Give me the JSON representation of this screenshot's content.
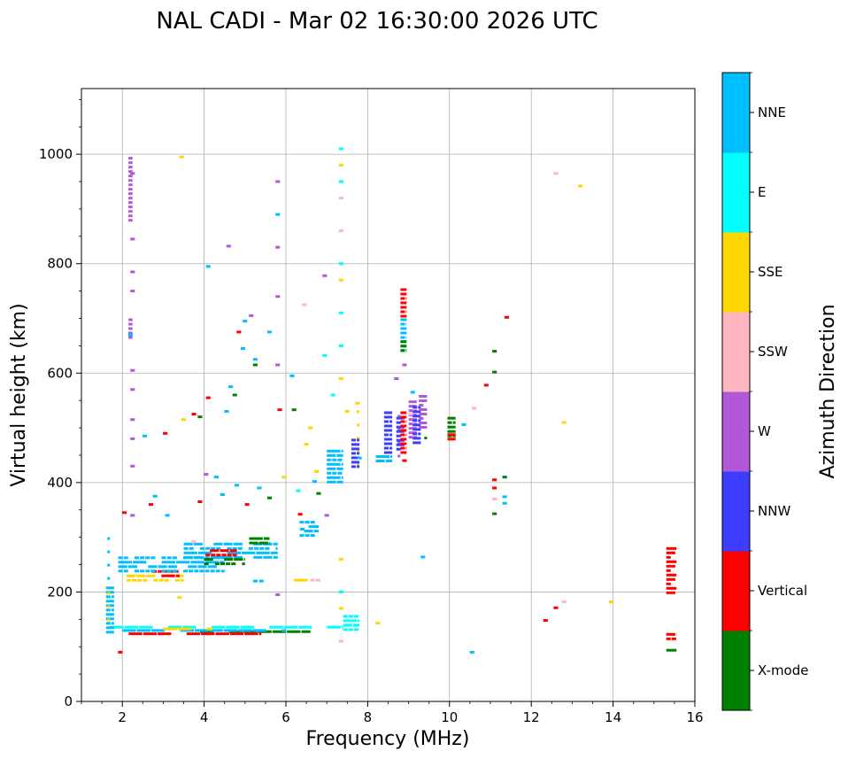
{
  "chart_data": {
    "type": "scatter",
    "title": "NAL CADI - Mar 02 16:30:00 2026 UTC",
    "xlabel": "Frequency (MHz)",
    "ylabel": "Virtual height (km)",
    "xlim": [
      1,
      16
    ],
    "ylim": [
      0,
      1120
    ],
    "xticks": [
      2,
      4,
      6,
      8,
      10,
      12,
      14,
      16
    ],
    "yticks": [
      0,
      200,
      400,
      600,
      800,
      1000
    ],
    "grid": true,
    "colorbar": {
      "title": "Azimuth Direction",
      "categories": [
        {
          "label": "X-mode",
          "color": "#008000"
        },
        {
          "label": "Vertical",
          "color": "#ff0000"
        },
        {
          "label": "NNW",
          "color": "#3d3dff"
        },
        {
          "label": "W",
          "color": "#b158d9"
        },
        {
          "label": "SSW",
          "color": "#ffb6c1"
        },
        {
          "label": "SSE",
          "color": "#ffd700"
        },
        {
          "label": "E",
          "color": "#00ffff"
        },
        {
          "label": "NNE",
          "color": "#00bfff"
        }
      ]
    },
    "segments": [
      {
        "label": "E",
        "f0": 1.7,
        "f1": 7.4,
        "h0": 130,
        "h1": 138
      },
      {
        "label": "X-mode",
        "f0": 3.9,
        "f1": 6.6,
        "h0": 124,
        "h1": 130
      },
      {
        "label": "Vertical",
        "f0": 1.8,
        "f1": 5.4,
        "h0": 121,
        "h1": 126
      },
      {
        "label": "NNE",
        "f0": 2.0,
        "f1": 6.0,
        "h0": 126,
        "h1": 132
      },
      {
        "label": "SSE",
        "f0": 3.0,
        "f1": 4.2,
        "h0": 131,
        "h1": 135
      },
      {
        "label": "E",
        "f0": 7.4,
        "f1": 7.8,
        "h0": 128,
        "h1": 158
      },
      {
        "label": "NNE",
        "f0": 1.6,
        "f1": 1.8,
        "h0": 125,
        "h1": 210
      },
      {
        "label": "SSE",
        "f0": 1.5,
        "f1": 1.7,
        "h0": 140,
        "h1": 200
      },
      {
        "label": "NNE",
        "f0": 1.5,
        "f1": 1.7,
        "h0": 220,
        "h1": 300
      },
      {
        "label": "SSE",
        "f0": 2.1,
        "f1": 3.5,
        "h0": 222,
        "h1": 232
      },
      {
        "label": "Vertical",
        "f0": 2.6,
        "f1": 3.4,
        "h0": 230,
        "h1": 240
      },
      {
        "label": "NNE",
        "f0": 1.9,
        "f1": 4.5,
        "h0": 240,
        "h1": 265
      },
      {
        "label": "NNE",
        "f0": 3.5,
        "f1": 5.8,
        "h0": 260,
        "h1": 290
      },
      {
        "label": "X-mode",
        "f0": 4.0,
        "f1": 5.0,
        "h0": 248,
        "h1": 262
      },
      {
        "label": "Vertical",
        "f0": 3.9,
        "f1": 4.8,
        "h0": 262,
        "h1": 278
      },
      {
        "label": "NNE",
        "f0": 6.2,
        "f1": 6.8,
        "h0": 300,
        "h1": 330
      },
      {
        "label": "X-mode",
        "f0": 5.1,
        "f1": 5.6,
        "h0": 290,
        "h1": 300
      },
      {
        "label": "SSE",
        "f0": 6.2,
        "f1": 6.8,
        "h0": 216,
        "h1": 224
      },
      {
        "label": "SSW",
        "f0": 6.6,
        "f1": 7.0,
        "h0": 216,
        "h1": 224
      },
      {
        "label": "NNE",
        "f0": 7.0,
        "f1": 7.4,
        "h0": 400,
        "h1": 460
      },
      {
        "label": "SSE",
        "f0": 7.6,
        "f1": 7.8,
        "h0": 420,
        "h1": 540
      },
      {
        "label": "NNW",
        "f0": 7.6,
        "f1": 7.8,
        "h0": 430,
        "h1": 480
      },
      {
        "label": "NNE",
        "f0": 8.2,
        "f1": 8.6,
        "h0": 440,
        "h1": 450
      },
      {
        "label": "NNW",
        "f0": 8.4,
        "f1": 8.6,
        "h0": 450,
        "h1": 530
      },
      {
        "label": "W",
        "f0": 8.6,
        "f1": 8.8,
        "h0": 450,
        "h1": 540
      },
      {
        "label": "NNW",
        "f0": 8.7,
        "f1": 8.9,
        "h0": 460,
        "h1": 520
      },
      {
        "label": "Vertical",
        "f0": 8.8,
        "f1": 8.95,
        "h0": 450,
        "h1": 530
      },
      {
        "label": "W",
        "f0": 9.0,
        "f1": 9.2,
        "h0": 480,
        "h1": 550
      },
      {
        "label": "NNW",
        "f0": 9.1,
        "f1": 9.3,
        "h0": 470,
        "h1": 540
      },
      {
        "label": "X-mode",
        "f0": 9.25,
        "f1": 9.45,
        "h0": 460,
        "h1": 500
      },
      {
        "label": "W",
        "f0": 9.25,
        "f1": 9.45,
        "h0": 500,
        "h1": 560
      },
      {
        "label": "X-mode",
        "f0": 9.95,
        "f1": 10.15,
        "h0": 485,
        "h1": 520
      },
      {
        "label": "Vertical",
        "f0": 9.95,
        "f1": 10.15,
        "h0": 475,
        "h1": 490
      },
      {
        "label": "Vertical",
        "f0": 8.8,
        "f1": 8.95,
        "h0": 700,
        "h1": 755
      },
      {
        "label": "NNE",
        "f0": 8.8,
        "f1": 8.95,
        "h0": 640,
        "h1": 700
      },
      {
        "label": "X-mode",
        "f0": 8.8,
        "f1": 8.95,
        "h0": 640,
        "h1": 660
      },
      {
        "label": "W",
        "f0": 2.15,
        "f1": 2.25,
        "h0": 880,
        "h1": 995
      },
      {
        "label": "W",
        "f0": 2.15,
        "f1": 2.25,
        "h0": 660,
        "h1": 700
      },
      {
        "label": "Vertical",
        "f0": 15.3,
        "f1": 15.55,
        "h0": 200,
        "h1": 282
      },
      {
        "label": "Vertical",
        "f0": 15.3,
        "f1": 15.55,
        "h0": 110,
        "h1": 125
      },
      {
        "label": "X-mode",
        "f0": 15.3,
        "f1": 15.55,
        "h0": 92,
        "h1": 96
      }
    ],
    "points": [
      {
        "label": "NNE",
        "f": 4.1,
        "h": 795
      },
      {
        "label": "NNE",
        "f": 5.8,
        "h": 890
      },
      {
        "label": "W",
        "f": 5.8,
        "h": 950
      },
      {
        "label": "E",
        "f": 7.35,
        "h": 1010
      },
      {
        "label": "SSE",
        "f": 7.35,
        "h": 980
      },
      {
        "label": "E",
        "f": 7.35,
        "h": 950
      },
      {
        "label": "SSW",
        "f": 7.35,
        "h": 920
      },
      {
        "label": "SSW",
        "f": 7.35,
        "h": 860
      },
      {
        "label": "E",
        "f": 7.35,
        "h": 800
      },
      {
        "label": "SSE",
        "f": 7.35,
        "h": 770
      },
      {
        "label": "E",
        "f": 7.35,
        "h": 710
      },
      {
        "label": "E",
        "f": 7.35,
        "h": 650
      },
      {
        "label": "SSE",
        "f": 7.35,
        "h": 590
      },
      {
        "label": "SSE",
        "f": 7.35,
        "h": 260
      },
      {
        "label": "E",
        "f": 7.35,
        "h": 200
      },
      {
        "label": "SSE",
        "f": 7.35,
        "h": 170
      },
      {
        "label": "SSW",
        "f": 7.35,
        "h": 110
      },
      {
        "label": "SSE",
        "f": 3.45,
        "h": 995
      },
      {
        "label": "W",
        "f": 5.8,
        "h": 830
      },
      {
        "label": "W",
        "f": 5.8,
        "h": 740
      },
      {
        "label": "W",
        "f": 5.8,
        "h": 615
      },
      {
        "label": "W",
        "f": 5.8,
        "h": 195
      },
      {
        "label": "SSW",
        "f": 12.6,
        "h": 965
      },
      {
        "label": "SSE",
        "f": 13.2,
        "h": 942
      },
      {
        "label": "Vertical",
        "f": 11.4,
        "h": 702
      },
      {
        "label": "X-mode",
        "f": 11.1,
        "h": 640
      },
      {
        "label": "X-mode",
        "f": 11.1,
        "h": 602
      },
      {
        "label": "Vertical",
        "f": 10.9,
        "h": 578
      },
      {
        "label": "SSW",
        "f": 10.6,
        "h": 536
      },
      {
        "label": "NNE",
        "f": 10.35,
        "h": 506
      },
      {
        "label": "Vertical",
        "f": 11.1,
        "h": 405
      },
      {
        "label": "Vertical",
        "f": 11.1,
        "h": 390
      },
      {
        "label": "NNE",
        "f": 11.35,
        "h": 374
      },
      {
        "label": "NNE",
        "f": 11.35,
        "h": 362
      },
      {
        "label": "X-mode",
        "f": 11.35,
        "h": 410
      },
      {
        "label": "SSW",
        "f": 11.1,
        "h": 370
      },
      {
        "label": "X-mode",
        "f": 11.1,
        "h": 343
      },
      {
        "label": "SSE",
        "f": 12.8,
        "h": 510
      },
      {
        "label": "NNE",
        "f": 9.35,
        "h": 264
      },
      {
        "label": "SSW",
        "f": 12.8,
        "h": 182
      },
      {
        "label": "SSE",
        "f": 13.95,
        "h": 182
      },
      {
        "label": "Vertical",
        "f": 12.6,
        "h": 171
      },
      {
        "label": "Vertical",
        "f": 12.35,
        "h": 148
      },
      {
        "label": "NNE",
        "f": 10.55,
        "h": 90
      },
      {
        "label": "SSE",
        "f": 8.25,
        "h": 143
      },
      {
        "label": "Vertical",
        "f": 1.95,
        "h": 90
      },
      {
        "label": "NNE",
        "f": 4.65,
        "h": 575
      },
      {
        "label": "X-mode",
        "f": 4.75,
        "h": 560
      },
      {
        "label": "Vertical",
        "f": 4.1,
        "h": 555
      },
      {
        "label": "NNE",
        "f": 5.25,
        "h": 625
      },
      {
        "label": "X-mode",
        "f": 5.25,
        "h": 615
      },
      {
        "label": "NNE",
        "f": 5.6,
        "h": 675
      },
      {
        "label": "W",
        "f": 5.15,
        "h": 705
      },
      {
        "label": "NNE",
        "f": 5.0,
        "h": 695
      },
      {
        "label": "Vertical",
        "f": 4.85,
        "h": 675
      },
      {
        "label": "NNE",
        "f": 4.95,
        "h": 645
      },
      {
        "label": "SSW",
        "f": 6.45,
        "h": 725
      },
      {
        "label": "W",
        "f": 6.95,
        "h": 778
      },
      {
        "label": "NNE",
        "f": 6.15,
        "h": 595
      },
      {
        "label": "E",
        "f": 6.95,
        "h": 632
      },
      {
        "label": "E",
        "f": 7.15,
        "h": 560
      },
      {
        "label": "SSE",
        "f": 7.5,
        "h": 530
      },
      {
        "label": "W",
        "f": 7.0,
        "h": 340
      },
      {
        "label": "Vertical",
        "f": 6.35,
        "h": 342
      },
      {
        "label": "NNE",
        "f": 6.4,
        "h": 315
      },
      {
        "label": "X-mode",
        "f": 6.2,
        "h": 533
      },
      {
        "label": "Vertical",
        "f": 5.85,
        "h": 533
      },
      {
        "label": "SSE",
        "f": 6.6,
        "h": 500
      },
      {
        "label": "SSE",
        "f": 6.5,
        "h": 470
      },
      {
        "label": "W",
        "f": 4.6,
        "h": 832
      },
      {
        "label": "NNE",
        "f": 5.25,
        "h": 220
      },
      {
        "label": "NNE",
        "f": 5.4,
        "h": 220
      },
      {
        "label": "SSE",
        "f": 3.4,
        "h": 190
      },
      {
        "label": "W",
        "f": 2.25,
        "h": 340
      },
      {
        "label": "Vertical",
        "f": 2.05,
        "h": 345
      },
      {
        "label": "W",
        "f": 2.25,
        "h": 430
      },
      {
        "label": "W",
        "f": 2.25,
        "h": 480
      },
      {
        "label": "W",
        "f": 2.25,
        "h": 515
      },
      {
        "label": "W",
        "f": 2.25,
        "h": 570
      },
      {
        "label": "W",
        "f": 2.25,
        "h": 605
      },
      {
        "label": "W",
        "f": 2.25,
        "h": 750
      },
      {
        "label": "W",
        "f": 2.25,
        "h": 785
      },
      {
        "label": "W",
        "f": 2.25,
        "h": 845
      },
      {
        "label": "W",
        "f": 2.25,
        "h": 965
      },
      {
        "label": "NNE",
        "f": 2.2,
        "h": 670
      },
      {
        "label": "NNE",
        "f": 2.55,
        "h": 485
      },
      {
        "label": "Vertical",
        "f": 3.05,
        "h": 490
      },
      {
        "label": "SSE",
        "f": 3.5,
        "h": 515
      },
      {
        "label": "Vertical",
        "f": 3.75,
        "h": 525
      },
      {
        "label": "X-mode",
        "f": 3.9,
        "h": 520
      },
      {
        "label": "NNE",
        "f": 4.55,
        "h": 530
      },
      {
        "label": "NNE",
        "f": 4.3,
        "h": 410
      },
      {
        "label": "W",
        "f": 4.05,
        "h": 415
      },
      {
        "label": "Vertical",
        "f": 3.9,
        "h": 365
      },
      {
        "label": "NNE",
        "f": 4.45,
        "h": 378
      },
      {
        "label": "Vertical",
        "f": 5.05,
        "h": 360
      },
      {
        "label": "X-mode",
        "f": 5.6,
        "h": 372
      },
      {
        "label": "NNE",
        "f": 5.35,
        "h": 390
      },
      {
        "label": "NNE",
        "f": 4.8,
        "h": 395
      },
      {
        "label": "SSW",
        "f": 3.75,
        "h": 292
      },
      {
        "label": "NNE",
        "f": 6.7,
        "h": 402
      },
      {
        "label": "SSE",
        "f": 6.75,
        "h": 420
      },
      {
        "label": "X-mode",
        "f": 6.8,
        "h": 380
      },
      {
        "label": "NNE",
        "f": 2.8,
        "h": 375
      },
      {
        "label": "Vertical",
        "f": 2.7,
        "h": 360
      },
      {
        "label": "NNE",
        "f": 3.1,
        "h": 340
      },
      {
        "label": "SSE",
        "f": 5.95,
        "h": 410
      },
      {
        "label": "E",
        "f": 6.3,
        "h": 385
      },
      {
        "label": "SSW",
        "f": 9.05,
        "h": 525
      },
      {
        "label": "NNE",
        "f": 9.1,
        "h": 565
      },
      {
        "label": "W",
        "f": 8.7,
        "h": 590
      },
      {
        "label": "W",
        "f": 8.9,
        "h": 615
      },
      {
        "label": "Vertical",
        "f": 8.9,
        "h": 440
      },
      {
        "label": "SSE",
        "f": 7.75,
        "h": 545
      },
      {
        "label": "NNE",
        "f": 7.8,
        "h": 445
      }
    ]
  }
}
